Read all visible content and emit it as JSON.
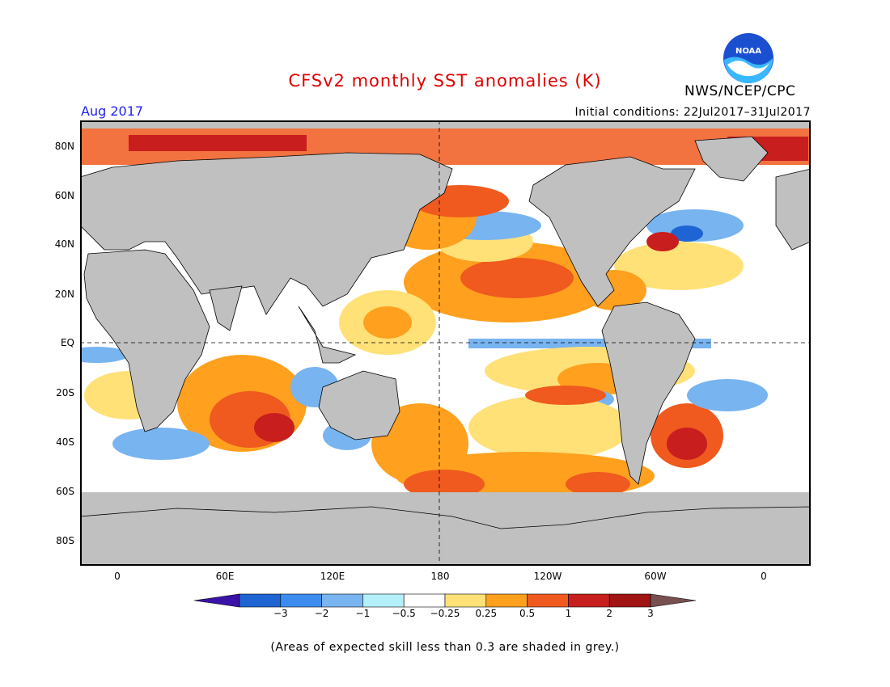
{
  "header": {
    "title": "CFSv2 monthly SST anomalies (K)",
    "month": "Aug 2017",
    "initial_conditions": "Initial conditions: 22Jul2017–31Jul2017",
    "agency": "NWS/NCEP/CPC",
    "logo_text": "NOAA"
  },
  "map": {
    "lat_labels": [
      "80N",
      "60N",
      "40N",
      "20N",
      "EQ",
      "20S",
      "40S",
      "60S",
      "80S"
    ],
    "lon_labels": [
      "0",
      "60E",
      "120E",
      "180",
      "120W",
      "60W",
      "0"
    ],
    "land_color": "#c0c0c0",
    "low_skill_color": "#c0c0c0"
  },
  "colorbar": {
    "labels": [
      "−3",
      "−2",
      "−1",
      "−0.5",
      "−0.25",
      "0.25",
      "0.5",
      "1",
      "2",
      "3"
    ],
    "colors": [
      "#3a12a8",
      "#1e64d2",
      "#3c8cf0",
      "#78b4f0",
      "#b4f0fa",
      "#ffffff",
      "#ffe178",
      "#ffa01e",
      "#f05a1e",
      "#c81e1e",
      "#a01414",
      "#785050"
    ]
  },
  "footnote": "(Areas of expected skill less than 0.3 are shaded in grey.)"
}
